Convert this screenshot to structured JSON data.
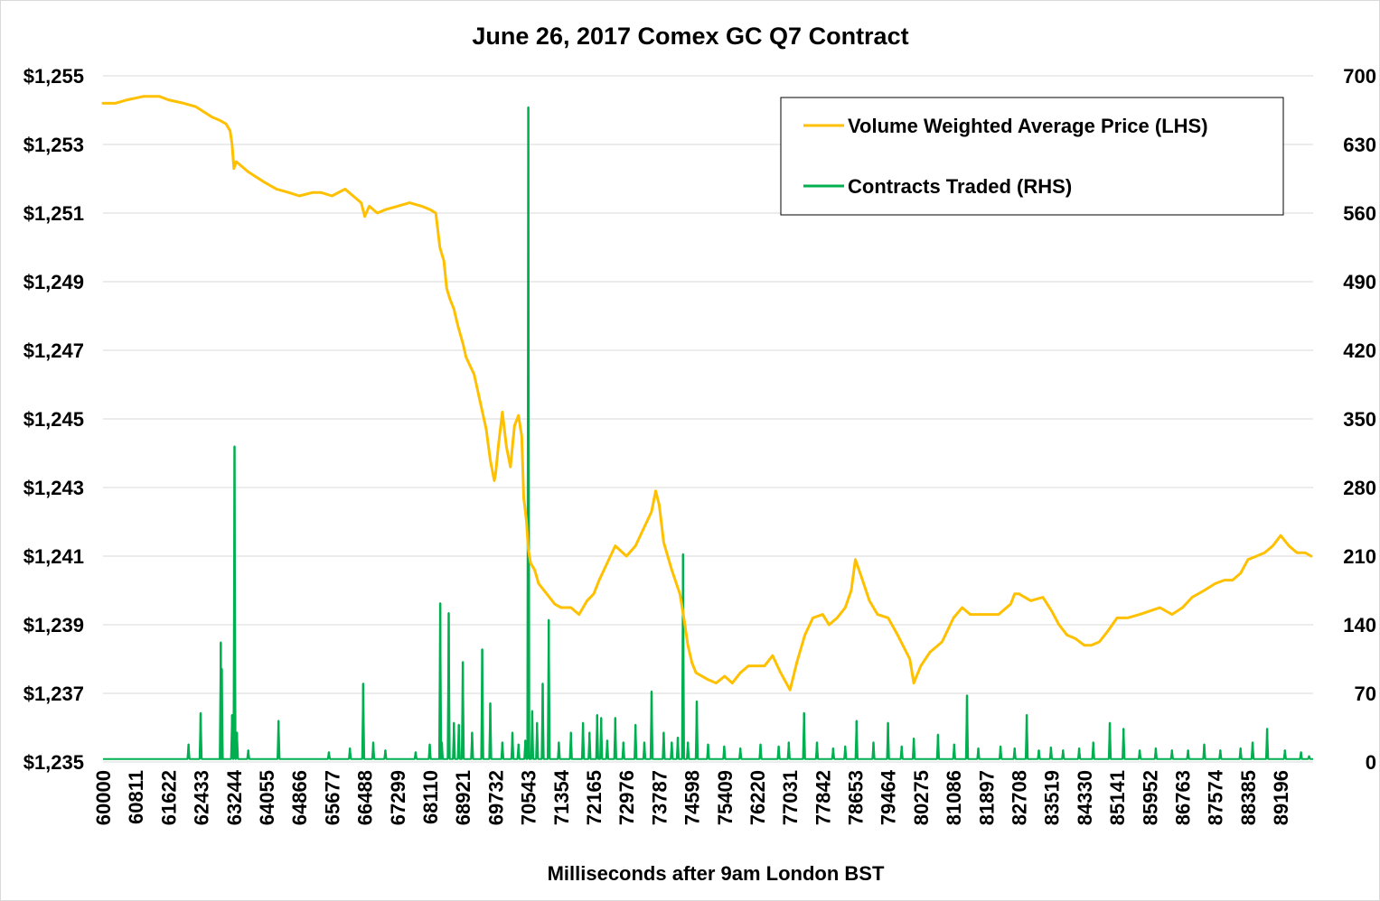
{
  "chart_data": {
    "type": "line",
    "title": "June 26, 2017 Comex GC Q7 Contract",
    "xlabel": "Milliseconds after 9am London BST",
    "x_range": [
      60000,
      90000
    ],
    "x_tick_labels": [
      "60000",
      "60811",
      "61622",
      "62433",
      "63244",
      "64055",
      "64866",
      "65677",
      "66488",
      "67299",
      "68110",
      "68921",
      "69732",
      "70543",
      "71354",
      "72165",
      "72976",
      "73787",
      "74598",
      "75409",
      "76220",
      "77031",
      "77842",
      "78653",
      "79464",
      "80275",
      "81086",
      "81897",
      "82708",
      "83519",
      "84330",
      "85141",
      "85952",
      "86763",
      "87574",
      "88385",
      "89196"
    ],
    "y_left": {
      "range": [
        1235,
        1255
      ],
      "tick_labels": [
        "$1,235",
        "$1,237",
        "$1,239",
        "$1,241",
        "$1,243",
        "$1,245",
        "$1,247",
        "$1,249",
        "$1,251",
        "$1,253",
        "$1,255"
      ]
    },
    "y_right": {
      "range": [
        0,
        700
      ],
      "tick_labels": [
        "0",
        "70",
        "140",
        "210",
        "280",
        "350",
        "420",
        "490",
        "560",
        "630",
        "700"
      ]
    },
    "legend": {
      "position": "top-right"
    },
    "colors": {
      "vwap": "#ffc000",
      "contracts": "#00b050",
      "grid": "#d9d9d9"
    },
    "series": [
      {
        "name": "Volume Weighted Average Price (LHS)",
        "axis": "left",
        "x": [
          60000,
          60300,
          60600,
          61000,
          61400,
          61622,
          62000,
          62300,
          62433,
          62700,
          62900,
          63050,
          63150,
          63200,
          63244,
          63300,
          63600,
          64000,
          64300,
          64600,
          64866,
          65200,
          65400,
          65677,
          66000,
          66200,
          66400,
          66488,
          66600,
          66800,
          67000,
          67299,
          67600,
          67900,
          68110,
          68250,
          68300,
          68350,
          68450,
          68520,
          68600,
          68700,
          68800,
          68921,
          69000,
          69200,
          69350,
          69500,
          69600,
          69700,
          69732,
          69800,
          69900,
          70000,
          70100,
          70200,
          70300,
          70380,
          70430,
          70460,
          70500,
          70543,
          70600,
          70700,
          70800,
          71000,
          71200,
          71354,
          71600,
          71800,
          72000,
          72165,
          72300,
          72500,
          72700,
          72976,
          73200,
          73400,
          73600,
          73700,
          73787,
          73900,
          74100,
          74300,
          74400,
          74500,
          74598,
          74700,
          75000,
          75200,
          75409,
          75600,
          75800,
          76000,
          76220,
          76400,
          76600,
          76800,
          77031,
          77200,
          77400,
          77600,
          77842,
          78000,
          78200,
          78400,
          78550,
          78653,
          78800,
          79000,
          79200,
          79464,
          79700,
          80000,
          80100,
          80275,
          80500,
          80800,
          81086,
          81300,
          81500,
          81700,
          81897,
          82200,
          82500,
          82600,
          82708,
          83000,
          83300,
          83519,
          83700,
          83900,
          84100,
          84330,
          84500,
          84700,
          84900,
          85141,
          85400,
          85700,
          85952,
          86200,
          86500,
          86763,
          87000,
          87300,
          87574,
          87800,
          88000,
          88200,
          88385,
          88600,
          88800,
          89000,
          89196,
          89400,
          89600,
          89800,
          89950
        ],
        "y": [
          1254.2,
          1254.2,
          1254.3,
          1254.4,
          1254.4,
          1254.3,
          1254.2,
          1254.1,
          1254.0,
          1253.8,
          1253.7,
          1253.6,
          1253.4,
          1253.0,
          1252.3,
          1252.5,
          1252.2,
          1251.9,
          1251.7,
          1251.6,
          1251.5,
          1251.6,
          1251.6,
          1251.5,
          1251.7,
          1251.5,
          1251.3,
          1250.9,
          1251.2,
          1251.0,
          1251.1,
          1251.2,
          1251.3,
          1251.2,
          1251.1,
          1251.0,
          1250.5,
          1250.0,
          1249.6,
          1248.8,
          1248.5,
          1248.2,
          1247.7,
          1247.2,
          1246.8,
          1246.3,
          1245.5,
          1244.7,
          1243.8,
          1243.2,
          1243.4,
          1244.2,
          1245.2,
          1244.2,
          1243.6,
          1244.8,
          1245.1,
          1244.5,
          1242.7,
          1242.4,
          1242.0,
          1241.2,
          1240.8,
          1240.6,
          1240.2,
          1239.9,
          1239.6,
          1239.5,
          1239.5,
          1239.3,
          1239.7,
          1239.9,
          1240.3,
          1240.8,
          1241.3,
          1241.0,
          1241.3,
          1241.8,
          1242.3,
          1242.9,
          1242.5,
          1241.4,
          1240.6,
          1239.9,
          1239.2,
          1238.4,
          1237.9,
          1237.6,
          1237.4,
          1237.3,
          1237.5,
          1237.3,
          1237.6,
          1237.8,
          1237.8,
          1237.8,
          1238.1,
          1237.6,
          1237.1,
          1237.9,
          1238.7,
          1239.2,
          1239.3,
          1239.0,
          1239.2,
          1239.5,
          1240.0,
          1240.9,
          1240.4,
          1239.7,
          1239.3,
          1239.2,
          1238.7,
          1238.0,
          1237.3,
          1237.8,
          1238.2,
          1238.5,
          1239.2,
          1239.5,
          1239.3,
          1239.3,
          1239.3,
          1239.3,
          1239.6,
          1239.9,
          1239.9,
          1239.7,
          1239.8,
          1239.4,
          1239.0,
          1238.7,
          1238.6,
          1238.4,
          1238.4,
          1238.5,
          1238.8,
          1239.2,
          1239.2,
          1239.3,
          1239.4,
          1239.5,
          1239.3,
          1239.5,
          1239.8,
          1240.0,
          1240.2,
          1240.3,
          1240.3,
          1240.5,
          1240.9,
          1241.0,
          1241.1,
          1241.3,
          1241.6,
          1241.3,
          1241.1,
          1241.1,
          1241.0
        ]
      },
      {
        "name": "Contracts Traded (RHS)",
        "axis": "right",
        "base_level": 3,
        "spikes": [
          {
            "x": 62120,
            "v": 18
          },
          {
            "x": 62420,
            "v": 50
          },
          {
            "x": 62920,
            "v": 122
          },
          {
            "x": 62945,
            "v": 95
          },
          {
            "x": 63200,
            "v": 48
          },
          {
            "x": 63260,
            "v": 322
          },
          {
            "x": 63320,
            "v": 30
          },
          {
            "x": 63600,
            "v": 12
          },
          {
            "x": 64350,
            "v": 42
          },
          {
            "x": 65600,
            "v": 10
          },
          {
            "x": 66120,
            "v": 14
          },
          {
            "x": 66450,
            "v": 80
          },
          {
            "x": 66700,
            "v": 20
          },
          {
            "x": 67000,
            "v": 12
          },
          {
            "x": 67750,
            "v": 10
          },
          {
            "x": 68100,
            "v": 18
          },
          {
            "x": 68360,
            "v": 162
          },
          {
            "x": 68400,
            "v": 20
          },
          {
            "x": 68570,
            "v": 152
          },
          {
            "x": 68700,
            "v": 40
          },
          {
            "x": 68820,
            "v": 38
          },
          {
            "x": 68920,
            "v": 102
          },
          {
            "x": 69150,
            "v": 30
          },
          {
            "x": 69400,
            "v": 115
          },
          {
            "x": 69600,
            "v": 60
          },
          {
            "x": 69900,
            "v": 20
          },
          {
            "x": 70150,
            "v": 30
          },
          {
            "x": 70300,
            "v": 18
          },
          {
            "x": 70470,
            "v": 22
          },
          {
            "x": 70543,
            "v": 668
          },
          {
            "x": 70640,
            "v": 52
          },
          {
            "x": 70760,
            "v": 40
          },
          {
            "x": 70900,
            "v": 80
          },
          {
            "x": 71050,
            "v": 145
          },
          {
            "x": 71300,
            "v": 20
          },
          {
            "x": 71600,
            "v": 30
          },
          {
            "x": 71900,
            "v": 40
          },
          {
            "x": 72060,
            "v": 30
          },
          {
            "x": 72250,
            "v": 48
          },
          {
            "x": 72350,
            "v": 45
          },
          {
            "x": 72500,
            "v": 22
          },
          {
            "x": 72700,
            "v": 45
          },
          {
            "x": 72900,
            "v": 20
          },
          {
            "x": 73200,
            "v": 38
          },
          {
            "x": 73420,
            "v": 20
          },
          {
            "x": 73600,
            "v": 72
          },
          {
            "x": 73900,
            "v": 30
          },
          {
            "x": 74100,
            "v": 20
          },
          {
            "x": 74250,
            "v": 25
          },
          {
            "x": 74380,
            "v": 212
          },
          {
            "x": 74500,
            "v": 20
          },
          {
            "x": 74720,
            "v": 62
          },
          {
            "x": 75000,
            "v": 18
          },
          {
            "x": 75400,
            "v": 16
          },
          {
            "x": 75800,
            "v": 14
          },
          {
            "x": 76300,
            "v": 18
          },
          {
            "x": 76750,
            "v": 16
          },
          {
            "x": 77000,
            "v": 20
          },
          {
            "x": 77380,
            "v": 50
          },
          {
            "x": 77700,
            "v": 20
          },
          {
            "x": 78100,
            "v": 14
          },
          {
            "x": 78400,
            "v": 16
          },
          {
            "x": 78680,
            "v": 42
          },
          {
            "x": 79100,
            "v": 20
          },
          {
            "x": 79460,
            "v": 40
          },
          {
            "x": 79800,
            "v": 16
          },
          {
            "x": 80100,
            "v": 24
          },
          {
            "x": 80700,
            "v": 28
          },
          {
            "x": 81100,
            "v": 18
          },
          {
            "x": 81420,
            "v": 68
          },
          {
            "x": 81700,
            "v": 14
          },
          {
            "x": 82250,
            "v": 16
          },
          {
            "x": 82600,
            "v": 14
          },
          {
            "x": 82900,
            "v": 48
          },
          {
            "x": 83200,
            "v": 12
          },
          {
            "x": 83500,
            "v": 15
          },
          {
            "x": 83800,
            "v": 12
          },
          {
            "x": 84200,
            "v": 14
          },
          {
            "x": 84550,
            "v": 20
          },
          {
            "x": 84960,
            "v": 40
          },
          {
            "x": 85300,
            "v": 34
          },
          {
            "x": 85700,
            "v": 12
          },
          {
            "x": 86100,
            "v": 14
          },
          {
            "x": 86500,
            "v": 12
          },
          {
            "x": 86900,
            "v": 12
          },
          {
            "x": 87300,
            "v": 18
          },
          {
            "x": 87700,
            "v": 12
          },
          {
            "x": 88200,
            "v": 14
          },
          {
            "x": 88500,
            "v": 20
          },
          {
            "x": 88860,
            "v": 34
          },
          {
            "x": 89300,
            "v": 12
          },
          {
            "x": 89700,
            "v": 10
          },
          {
            "x": 89900,
            "v": 6
          }
        ]
      }
    ]
  }
}
